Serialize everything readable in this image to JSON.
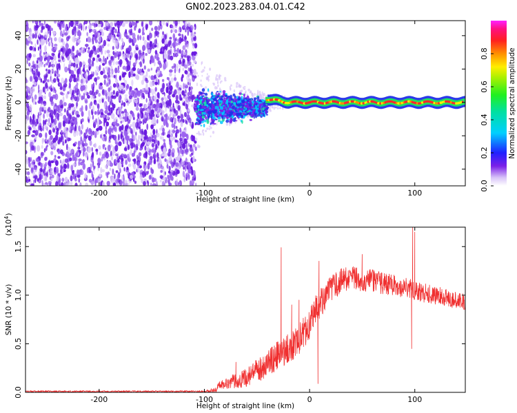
{
  "title": "GN02.2023.283.04.01.C42",
  "colors": {
    "snr_line": "#f03030",
    "speck_dark": "#6a1be0",
    "speck_light": "#d8c4f8",
    "ridge_core": "#ff2a2a",
    "ridge_mid": "#20e060",
    "ridge_edge": "#2030e8"
  },
  "chart_data": [
    {
      "type": "heatmap",
      "xlabel": "Height of straight line (km)",
      "ylabel": "Frequency (Hz)",
      "xlim": [
        -270,
        148
      ],
      "ylim": [
        -50,
        49
      ],
      "x_ticks": [
        -200,
        -100,
        0,
        100
      ],
      "y_ticks": [
        -40,
        -20,
        0,
        20,
        40
      ],
      "x_tick_labels": [
        "-200",
        "-100",
        "0",
        "100"
      ],
      "y_tick_labels": [
        "-40",
        "-20",
        "0",
        "20",
        "40"
      ],
      "grid": false,
      "colorbar": {
        "label": "Normalized spectral amplitude",
        "range": [
          0.0,
          1.0
        ],
        "ticks": [
          0.0,
          0.2,
          0.4,
          0.6,
          0.8
        ],
        "tick_labels": [
          "0.0",
          "0.2",
          "0.4",
          "0.6",
          "0.8"
        ],
        "colormap": "rainbow (white, purple, blue, cyan, green, yellow, orange, red, magenta)"
      },
      "regions": [
        {
          "name": "broadband noise",
          "x_range": [
            -270,
            -108
          ],
          "freq_range": [
            -50,
            49
          ],
          "amplitude": 0.1
        },
        {
          "name": "turbulent onset",
          "x_range": [
            -108,
            -40
          ],
          "freq_range": [
            -12,
            8
          ],
          "amplitude": 0.35
        },
        {
          "name": "narrowband signal",
          "x_range": [
            -40,
            148
          ],
          "center_freq": [
            [
              -40,
              2
            ],
            [
              -20,
              0
            ],
            [
              0,
              0
            ],
            [
              20,
              0
            ],
            [
              40,
              0
            ],
            [
              60,
              0
            ],
            [
              80,
              0
            ],
            [
              100,
              0
            ],
            [
              120,
              0
            ],
            [
              148,
              0
            ]
          ],
          "amplitude": 0.9
        }
      ]
    },
    {
      "type": "line",
      "xlabel": "Height of straight line (km)",
      "ylabel": "SNR (10 * v/v)",
      "y_multiplier": "(x10^4)",
      "xlim": [
        -270,
        148
      ],
      "ylim": [
        0,
        1.7
      ],
      "x_ticks": [
        -200,
        -100,
        0,
        100
      ],
      "y_ticks": [
        0.0,
        0.5,
        1.0,
        1.5
      ],
      "x_tick_labels": [
        "-200",
        "-100",
        "0",
        "100"
      ],
      "y_tick_labels": [
        "0.0",
        "0.5",
        "1.0",
        "1.5"
      ],
      "grid": false,
      "series": [
        {
          "color": "#f03030",
          "envelope": [
            [
              -270,
              0.01
            ],
            [
              -150,
              0.01
            ],
            [
              -100,
              0.01
            ],
            [
              -90,
              0.02
            ],
            [
              -85,
              0.08
            ],
            [
              -70,
              0.12
            ],
            [
              -60,
              0.15
            ],
            [
              -50,
              0.22
            ],
            [
              -40,
              0.3
            ],
            [
              -30,
              0.38
            ],
            [
              -20,
              0.45
            ],
            [
              -10,
              0.55
            ],
            [
              0,
              0.7
            ],
            [
              5,
              0.85
            ],
            [
              10,
              0.92
            ],
            [
              20,
              1.05
            ],
            [
              30,
              1.15
            ],
            [
              40,
              1.18
            ],
            [
              50,
              1.15
            ],
            [
              60,
              1.15
            ],
            [
              70,
              1.12
            ],
            [
              80,
              1.1
            ],
            [
              90,
              1.08
            ],
            [
              100,
              1.05
            ],
            [
              110,
              1.02
            ],
            [
              120,
              1.0
            ],
            [
              130,
              0.97
            ],
            [
              148,
              0.93
            ]
          ],
          "noise_amplitude": [
            [
              -270,
              0.008
            ],
            [
              -100,
              0.008
            ],
            [
              -90,
              0.03
            ],
            [
              -70,
              0.08
            ],
            [
              -40,
              0.14
            ],
            [
              -10,
              0.16
            ],
            [
              10,
              0.15
            ],
            [
              40,
              0.12
            ],
            [
              80,
              0.11
            ],
            [
              110,
              0.1
            ],
            [
              148,
              0.08
            ]
          ],
          "spikes": [
            [
              -70,
              0.31
            ],
            [
              -27,
              1.49
            ],
            [
              -17,
              0.9
            ],
            [
              -10,
              0.95
            ],
            [
              8,
              0.09
            ],
            [
              9,
              1.35
            ],
            [
              50,
              1.42
            ],
            [
              98,
              1.7
            ],
            [
              100,
              1.65
            ],
            [
              97,
              0.45
            ]
          ]
        }
      ]
    }
  ]
}
